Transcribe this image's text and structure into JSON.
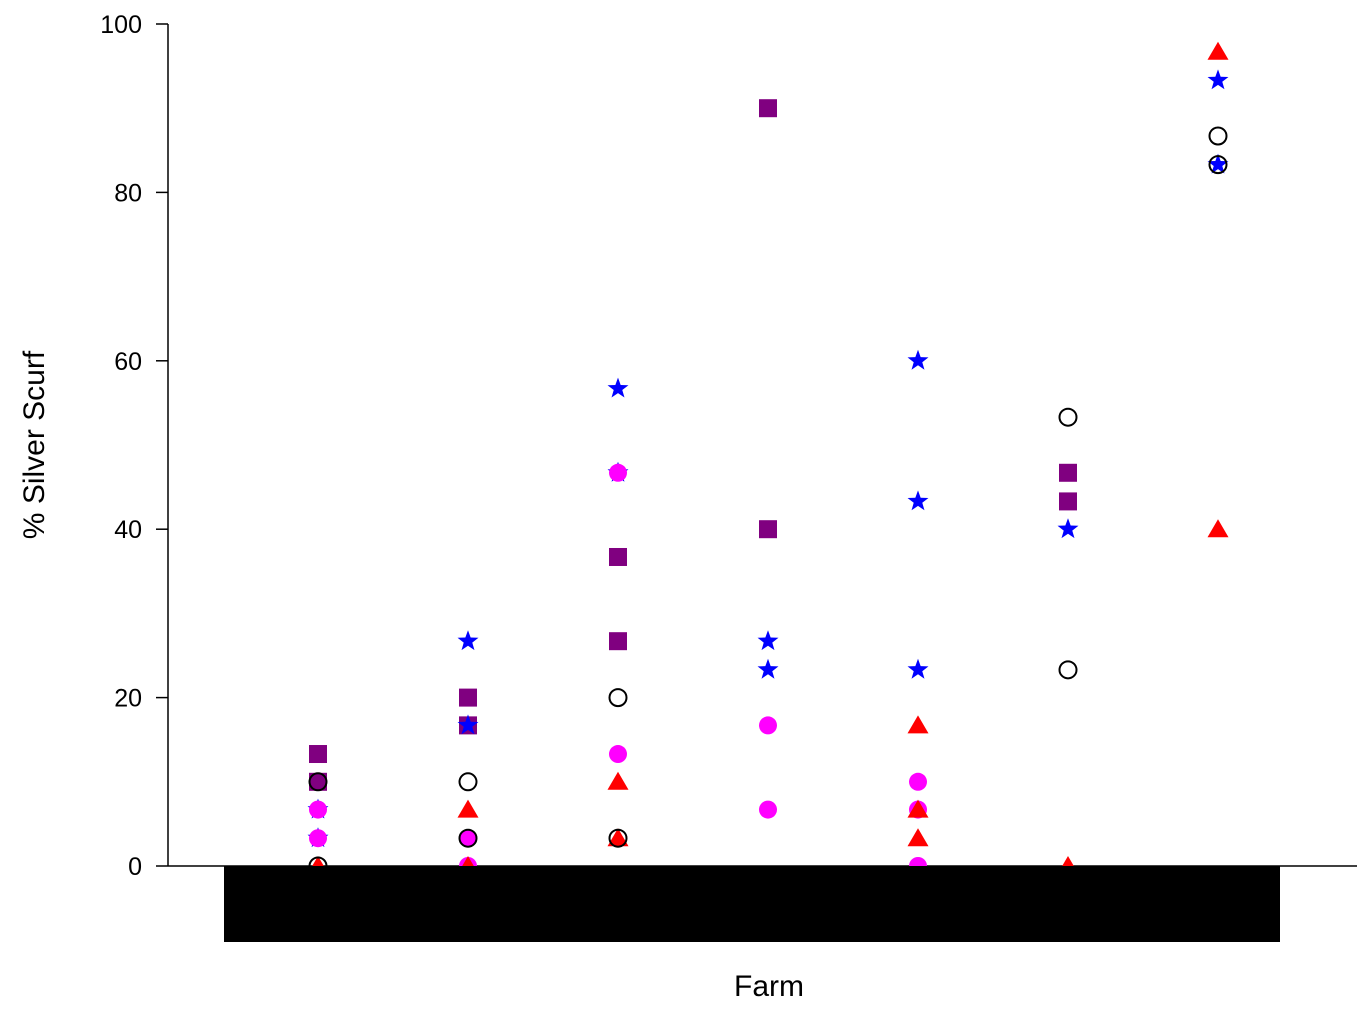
{
  "chart_data": {
    "type": "scatter",
    "title": "",
    "xlabel": "Farm",
    "ylabel": "% Silver Scurf",
    "ylim": [
      0,
      100
    ],
    "yticks": [
      "0",
      "20",
      "40",
      "60",
      "80",
      "100"
    ],
    "x_categories_redacted": true,
    "n_categories": 7,
    "legend": "none",
    "grid": false,
    "series": [
      {
        "marker": "filled-square",
        "color": "#800080",
        "points": [
          {
            "x": 1,
            "y": 13.3
          },
          {
            "x": 1,
            "y": 10
          },
          {
            "x": 2,
            "y": 20
          },
          {
            "x": 2,
            "y": 16.7
          },
          {
            "x": 3,
            "y": 36.7
          },
          {
            "x": 3,
            "y": 26.7
          },
          {
            "x": 4,
            "y": 90
          },
          {
            "x": 4,
            "y": 40
          },
          {
            "x": 6,
            "y": 46.7
          },
          {
            "x": 6,
            "y": 43.3
          }
        ]
      },
      {
        "marker": "star",
        "color": "#0000ff",
        "points": [
          {
            "x": 1,
            "y": 6.7
          },
          {
            "x": 1,
            "y": 3.3
          },
          {
            "x": 2,
            "y": 26.7
          },
          {
            "x": 2,
            "y": 16.7
          },
          {
            "x": 3,
            "y": 56.7
          },
          {
            "x": 3,
            "y": 46.7
          },
          {
            "x": 4,
            "y": 26.7
          },
          {
            "x": 4,
            "y": 23.3
          },
          {
            "x": 5,
            "y": 60
          },
          {
            "x": 5,
            "y": 43.3
          },
          {
            "x": 5,
            "y": 23.3
          },
          {
            "x": 6,
            "y": 40
          },
          {
            "x": 7,
            "y": 93.3
          },
          {
            "x": 7,
            "y": 83.3
          }
        ]
      },
      {
        "marker": "filled-circle",
        "color": "#ff00ff",
        "points": [
          {
            "x": 1,
            "y": 6.7
          },
          {
            "x": 1,
            "y": 3.3
          },
          {
            "x": 2,
            "y": 3.3
          },
          {
            "x": 2,
            "y": 0
          },
          {
            "x": 3,
            "y": 46.7
          },
          {
            "x": 3,
            "y": 13.3
          },
          {
            "x": 4,
            "y": 16.7
          },
          {
            "x": 4,
            "y": 6.7
          },
          {
            "x": 5,
            "y": 10
          },
          {
            "x": 5,
            "y": 6.7
          },
          {
            "x": 5,
            "y": 0
          }
        ]
      },
      {
        "marker": "filled-triangle",
        "color": "#ff0000",
        "points": [
          {
            "x": 1,
            "y": 0
          },
          {
            "x": 2,
            "y": 6.7
          },
          {
            "x": 2,
            "y": 0
          },
          {
            "x": 3,
            "y": 10
          },
          {
            "x": 3,
            "y": 3.3
          },
          {
            "x": 5,
            "y": 16.7
          },
          {
            "x": 5,
            "y": 6.7
          },
          {
            "x": 5,
            "y": 3.3
          },
          {
            "x": 6,
            "y": 0
          },
          {
            "x": 7,
            "y": 96.7
          },
          {
            "x": 7,
            "y": 40
          }
        ]
      },
      {
        "marker": "open-circle",
        "color": "#000000",
        "points": [
          {
            "x": 1,
            "y": 10
          },
          {
            "x": 1,
            "y": 0
          },
          {
            "x": 2,
            "y": 10
          },
          {
            "x": 2,
            "y": 3.3
          },
          {
            "x": 3,
            "y": 20
          },
          {
            "x": 3,
            "y": 3.3
          },
          {
            "x": 6,
            "y": 53.3
          },
          {
            "x": 6,
            "y": 23.3
          },
          {
            "x": 7,
            "y": 86.7
          },
          {
            "x": 7,
            "y": 83.3
          }
        ]
      }
    ]
  }
}
